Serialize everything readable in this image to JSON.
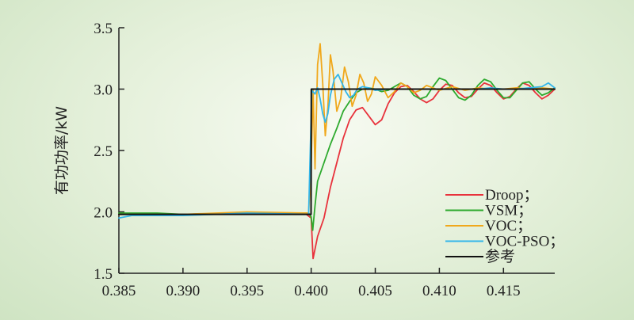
{
  "chart_data": {
    "type": "line",
    "title": "",
    "xlabel": "",
    "ylabel": "有功功率/kW",
    "xlim": [
      0.385,
      0.419
    ],
    "ylim": [
      1.5,
      3.5
    ],
    "xticks": [
      "0.385",
      "0.390",
      "0.395",
      "0.400",
      "0.405",
      "0.410",
      "0.415"
    ],
    "yticks": [
      "1.5",
      "2.0",
      "2.5",
      "3.0",
      "3.5"
    ],
    "legend_position": "bottom-right",
    "series": [
      {
        "name": "Droop；",
        "color": "#e8323c",
        "points": [
          [
            0.385,
            1.98
          ],
          [
            0.39,
            1.98
          ],
          [
            0.395,
            1.99
          ],
          [
            0.3995,
            1.99
          ],
          [
            0.4,
            1.95
          ],
          [
            0.40015,
            1.62
          ],
          [
            0.4005,
            1.8
          ],
          [
            0.401,
            1.95
          ],
          [
            0.4015,
            2.2
          ],
          [
            0.402,
            2.4
          ],
          [
            0.4025,
            2.6
          ],
          [
            0.403,
            2.75
          ],
          [
            0.4035,
            2.83
          ],
          [
            0.404,
            2.85
          ],
          [
            0.4045,
            2.78
          ],
          [
            0.405,
            2.71
          ],
          [
            0.4055,
            2.75
          ],
          [
            0.406,
            2.88
          ],
          [
            0.4065,
            2.97
          ],
          [
            0.407,
            3.02
          ],
          [
            0.4075,
            3.03
          ],
          [
            0.408,
            2.98
          ],
          [
            0.4085,
            2.92
          ],
          [
            0.409,
            2.89
          ],
          [
            0.4095,
            2.92
          ],
          [
            0.41,
            2.99
          ],
          [
            0.4105,
            3.04
          ],
          [
            0.411,
            3.03
          ],
          [
            0.4115,
            2.97
          ],
          [
            0.412,
            2.93
          ],
          [
            0.4125,
            2.94
          ],
          [
            0.413,
            3.0
          ],
          [
            0.4135,
            3.05
          ],
          [
            0.414,
            3.03
          ],
          [
            0.4145,
            2.97
          ],
          [
            0.415,
            2.92
          ],
          [
            0.4155,
            2.94
          ],
          [
            0.416,
            3.0
          ],
          [
            0.4165,
            3.05
          ],
          [
            0.417,
            3.03
          ],
          [
            0.4175,
            2.97
          ],
          [
            0.418,
            2.92
          ],
          [
            0.4185,
            2.95
          ],
          [
            0.419,
            3.0
          ]
        ]
      },
      {
        "name": "VSM；",
        "color": "#2eaa2e",
        "points": [
          [
            0.385,
            1.99
          ],
          [
            0.388,
            1.99
          ],
          [
            0.39,
            1.98
          ],
          [
            0.395,
            1.99
          ],
          [
            0.3998,
            1.99
          ],
          [
            0.4,
            1.96
          ],
          [
            0.40012,
            1.85
          ],
          [
            0.4003,
            2.05
          ],
          [
            0.4005,
            2.25
          ],
          [
            0.401,
            2.4
          ],
          [
            0.4015,
            2.55
          ],
          [
            0.402,
            2.68
          ],
          [
            0.4025,
            2.82
          ],
          [
            0.403,
            2.9
          ],
          [
            0.4035,
            2.97
          ],
          [
            0.404,
            3.0
          ],
          [
            0.4045,
            3.01
          ],
          [
            0.405,
            3.0
          ],
          [
            0.4055,
            2.98
          ],
          [
            0.406,
            2.99
          ],
          [
            0.4065,
            3.02
          ],
          [
            0.407,
            3.05
          ],
          [
            0.4075,
            3.02
          ],
          [
            0.408,
            2.95
          ],
          [
            0.4085,
            2.92
          ],
          [
            0.409,
            2.94
          ],
          [
            0.4095,
            3.02
          ],
          [
            0.41,
            3.09
          ],
          [
            0.4105,
            3.07
          ],
          [
            0.411,
            3.0
          ],
          [
            0.4115,
            2.93
          ],
          [
            0.412,
            2.91
          ],
          [
            0.4125,
            2.95
          ],
          [
            0.413,
            3.03
          ],
          [
            0.4135,
            3.08
          ],
          [
            0.414,
            3.06
          ],
          [
            0.4145,
            2.99
          ],
          [
            0.415,
            2.93
          ],
          [
            0.4155,
            2.93
          ],
          [
            0.416,
            2.99
          ],
          [
            0.4165,
            3.05
          ],
          [
            0.417,
            3.06
          ],
          [
            0.4175,
            3.0
          ],
          [
            0.418,
            2.95
          ],
          [
            0.4185,
            2.97
          ],
          [
            0.419,
            3.01
          ]
        ]
      },
      {
        "name": "VOC；",
        "color": "#f0a81c",
        "points": [
          [
            0.385,
            1.98
          ],
          [
            0.39,
            1.98
          ],
          [
            0.395,
            2.0
          ],
          [
            0.3998,
            1.99
          ],
          [
            0.4,
            2.4
          ],
          [
            0.40015,
            3.0
          ],
          [
            0.4003,
            2.35
          ],
          [
            0.4005,
            3.2
          ],
          [
            0.4007,
            3.37
          ],
          [
            0.4009,
            3.05
          ],
          [
            0.4011,
            2.62
          ],
          [
            0.4013,
            2.85
          ],
          [
            0.4015,
            3.28
          ],
          [
            0.4017,
            3.15
          ],
          [
            0.402,
            2.82
          ],
          [
            0.4023,
            2.92
          ],
          [
            0.4026,
            3.18
          ],
          [
            0.4029,
            3.06
          ],
          [
            0.4032,
            2.86
          ],
          [
            0.4035,
            2.95
          ],
          [
            0.4038,
            3.12
          ],
          [
            0.4041,
            3.05
          ],
          [
            0.4044,
            2.9
          ],
          [
            0.4047,
            2.96
          ],
          [
            0.405,
            3.1
          ],
          [
            0.4055,
            3.03
          ],
          [
            0.406,
            2.93
          ],
          [
            0.4065,
            2.98
          ],
          [
            0.407,
            3.05
          ],
          [
            0.4075,
            3.02
          ],
          [
            0.408,
            2.97
          ],
          [
            0.4085,
            2.99
          ],
          [
            0.409,
            3.03
          ],
          [
            0.4095,
            3.01
          ],
          [
            0.41,
            2.99
          ],
          [
            0.411,
            3.02
          ],
          [
            0.412,
            2.99
          ],
          [
            0.413,
            3.01
          ],
          [
            0.414,
            3.0
          ],
          [
            0.415,
            3.0
          ],
          [
            0.416,
            3.01
          ],
          [
            0.417,
            3.0
          ],
          [
            0.418,
            3.01
          ],
          [
            0.419,
            3.0
          ]
        ]
      },
      {
        "name": "VOC-PSO；",
        "color": "#33b6ea",
        "points": [
          [
            0.385,
            1.95
          ],
          [
            0.386,
            1.97
          ],
          [
            0.39,
            1.97
          ],
          [
            0.395,
            1.99
          ],
          [
            0.3998,
            1.98
          ],
          [
            0.40005,
            2.99
          ],
          [
            0.4003,
            2.96
          ],
          [
            0.4005,
            3.01
          ],
          [
            0.4007,
            2.92
          ],
          [
            0.4009,
            2.8
          ],
          [
            0.4011,
            2.73
          ],
          [
            0.4013,
            2.8
          ],
          [
            0.4015,
            2.95
          ],
          [
            0.4018,
            3.08
          ],
          [
            0.4021,
            3.12
          ],
          [
            0.4024,
            3.05
          ],
          [
            0.4027,
            2.98
          ],
          [
            0.403,
            2.93
          ],
          [
            0.4033,
            2.95
          ],
          [
            0.4036,
            3.0
          ],
          [
            0.404,
            3.02
          ],
          [
            0.4045,
            3.01
          ],
          [
            0.405,
            2.99
          ],
          [
            0.406,
            3.0
          ],
          [
            0.407,
            3.0
          ],
          [
            0.408,
            3.0
          ],
          [
            0.409,
            3.0
          ],
          [
            0.41,
            3.0
          ],
          [
            0.411,
            3.0
          ],
          [
            0.412,
            3.0
          ],
          [
            0.413,
            3.0
          ],
          [
            0.414,
            3.01
          ],
          [
            0.415,
            3.0
          ],
          [
            0.416,
            3.0
          ],
          [
            0.417,
            3.01
          ],
          [
            0.418,
            3.02
          ],
          [
            0.4185,
            3.05
          ],
          [
            0.419,
            3.01
          ]
        ]
      },
      {
        "name": "参考",
        "color": "#111111",
        "points": [
          [
            0.385,
            1.98
          ],
          [
            0.39999,
            1.98
          ],
          [
            0.40001,
            3.0
          ],
          [
            0.419,
            3.0
          ]
        ]
      }
    ]
  }
}
